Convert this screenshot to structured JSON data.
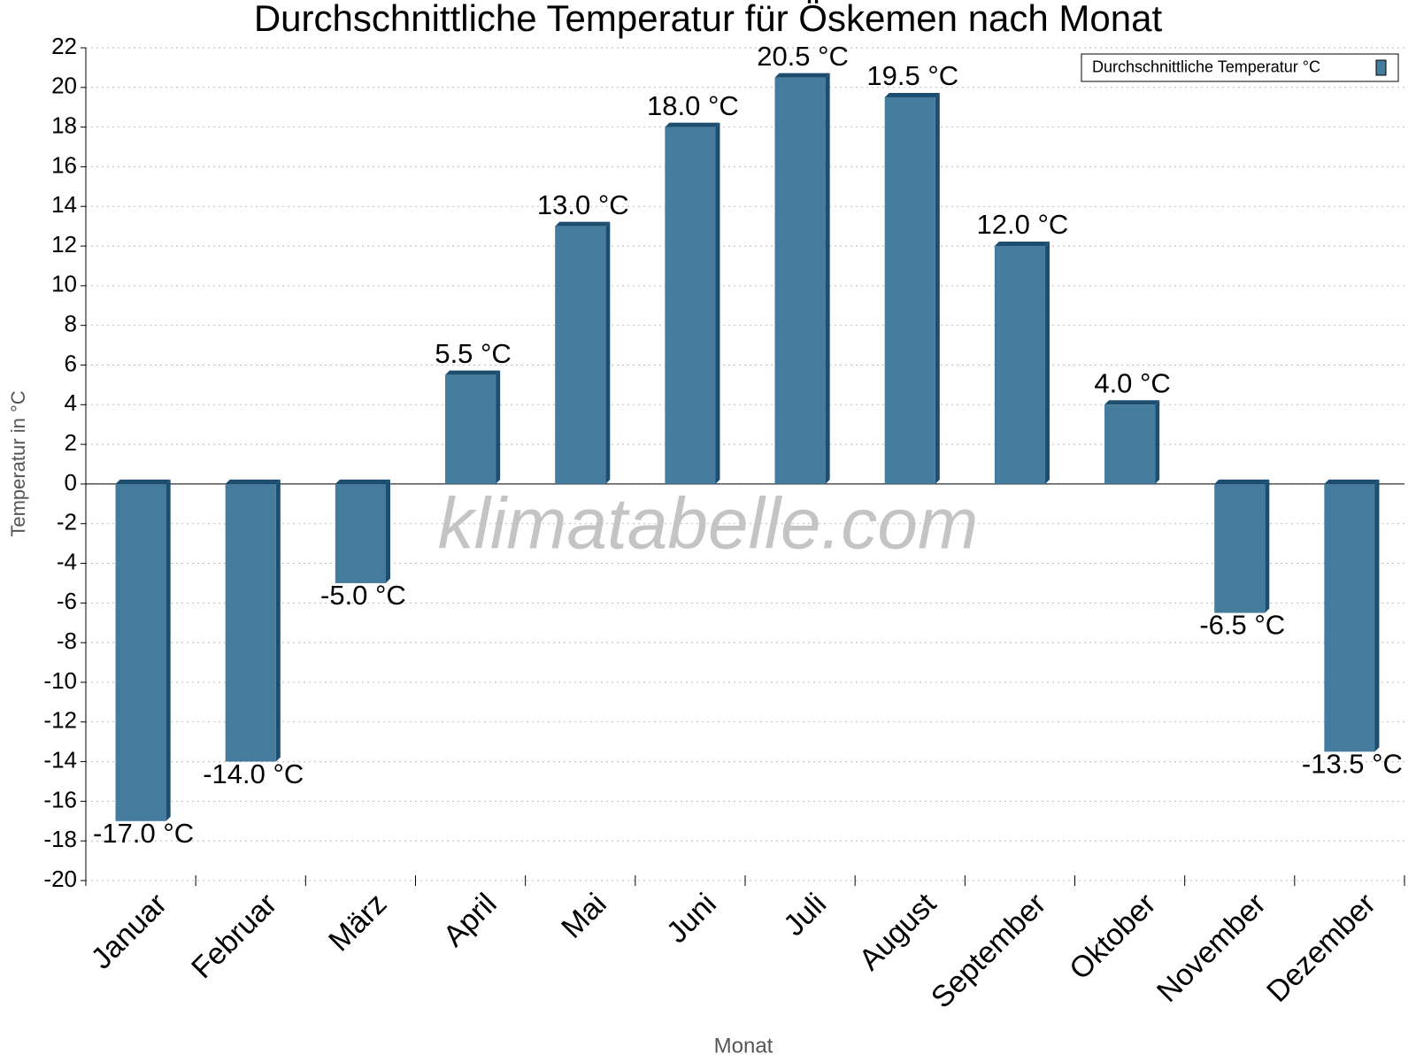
{
  "chart_data": {
    "type": "bar",
    "title": "Durchschnittliche Temperatur für Öskemen nach Monat",
    "x_label": "Monat",
    "y_label": "Temperatur in °C",
    "watermark": "klimatabelle.com",
    "categories": [
      "Januar",
      "Februar",
      "März",
      "April",
      "Mai",
      "Juni",
      "Juli",
      "August",
      "September",
      "Oktober",
      "November",
      "Dezember"
    ],
    "series": [
      {
        "name": "Durchschnittliche Temperatur °C",
        "color": "#457b9d",
        "values": [
          -17.0,
          -14.0,
          -5.0,
          5.5,
          13.0,
          18.0,
          20.5,
          19.5,
          12.0,
          4.0,
          -6.5,
          -13.5
        ],
        "value_labels": [
          "-17.0 °C",
          "-14.0 °C",
          "-5.0 °C",
          "5.5 °C",
          "13.0 °C",
          "18.0 °C",
          "20.5 °C",
          "19.5 °C",
          "12.0 °C",
          "4.0 °C",
          "-6.5 °C",
          "-13.5 °C"
        ]
      }
    ],
    "ylim": [
      -20,
      22
    ],
    "yticks": [
      -20,
      -18,
      -16,
      -14,
      -12,
      -10,
      -8,
      -6,
      -4,
      -2,
      0,
      2,
      4,
      6,
      8,
      10,
      12,
      14,
      16,
      18,
      20,
      22
    ],
    "grid": true,
    "legend": "top-right"
  }
}
